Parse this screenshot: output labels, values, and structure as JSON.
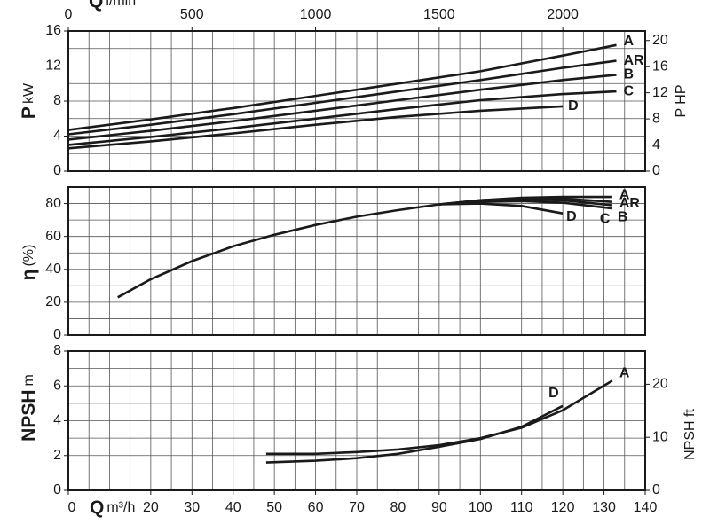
{
  "chart_data": [
    {
      "type": "line",
      "ylabel": "P",
      "yunit": "kW",
      "ylim": [
        0,
        16
      ],
      "yticks": [
        0,
        4,
        8,
        12,
        16
      ],
      "ygrid": [
        0,
        2,
        4,
        6,
        8,
        10,
        12,
        14,
        16
      ],
      "y2label": "P HP",
      "y2lim": [
        0,
        21.46
      ],
      "y2ticks": [
        0,
        4,
        8,
        12,
        16,
        20
      ],
      "xlim": [
        0,
        140
      ],
      "xgrid": [
        0,
        5,
        10,
        15,
        20,
        25,
        30,
        35,
        40,
        45,
        50,
        55,
        60,
        65,
        70,
        75,
        80,
        85,
        90,
        95,
        100,
        105,
        110,
        115,
        120,
        125,
        130,
        135,
        140
      ],
      "x2label": "Q",
      "x2unit": "l/min",
      "x2lim": [
        0,
        2333.33
      ],
      "x2ticks": [
        0,
        500,
        1000,
        1500,
        2000
      ],
      "series": [
        {
          "name": "A",
          "color": "#1a1a1a",
          "x": [
            0,
            20,
            40,
            60,
            80,
            100,
            120,
            133
          ],
          "values": [
            4.7,
            5.9,
            7.2,
            8.6,
            10.0,
            11.4,
            13.2,
            14.4
          ]
        },
        {
          "name": "AR",
          "color": "#1a1a1a",
          "x": [
            0,
            20,
            40,
            60,
            80,
            100,
            120,
            133
          ],
          "values": [
            4.2,
            5.3,
            6.5,
            7.8,
            9.1,
            10.4,
            11.8,
            12.6
          ]
        },
        {
          "name": "B",
          "color": "#1a1a1a",
          "x": [
            0,
            20,
            40,
            60,
            80,
            100,
            120,
            133
          ],
          "values": [
            3.6,
            4.6,
            5.7,
            6.9,
            8.1,
            9.3,
            10.4,
            11.0
          ]
        },
        {
          "name": "C",
          "color": "#1a1a1a",
          "x": [
            0,
            20,
            40,
            60,
            80,
            100,
            120,
            133
          ],
          "values": [
            3.0,
            3.9,
            4.9,
            6.0,
            7.1,
            8.1,
            8.8,
            9.1
          ]
        },
        {
          "name": "D",
          "color": "#1a1a1a",
          "x": [
            0,
            20,
            40,
            60,
            80,
            100,
            120
          ],
          "values": [
            2.6,
            3.4,
            4.3,
            5.3,
            6.2,
            6.9,
            7.4
          ]
        }
      ]
    },
    {
      "type": "line",
      "ylabel": "η",
      "yunit": "(%)",
      "ylim": [
        0,
        90
      ],
      "yticks": [
        0,
        20,
        40,
        60,
        80
      ],
      "ygrid": [
        0,
        10,
        20,
        30,
        40,
        50,
        60,
        70,
        80,
        90
      ],
      "xlim": [
        0,
        140
      ],
      "xgrid": [
        0,
        5,
        10,
        15,
        20,
        25,
        30,
        35,
        40,
        45,
        50,
        55,
        60,
        65,
        70,
        75,
        80,
        85,
        90,
        95,
        100,
        105,
        110,
        115,
        120,
        125,
        130,
        135,
        140
      ],
      "series": [
        {
          "name": "A",
          "color": "#1a1a1a",
          "x": [
            12,
            20,
            30,
            40,
            50,
            60,
            70,
            80,
            90,
            100,
            110,
            120,
            132
          ],
          "values": [
            23,
            34,
            45,
            54,
            61,
            67,
            72,
            76,
            79.5,
            82,
            83.5,
            84,
            84
          ]
        },
        {
          "name": "AR",
          "color": "#1a1a1a",
          "x": [
            90,
            100,
            110,
            120,
            132
          ],
          "values": [
            79.5,
            82,
            83,
            83,
            81
          ]
        },
        {
          "name": "B",
          "color": "#1a1a1a",
          "x": [
            90,
            100,
            110,
            120,
            132
          ],
          "values": [
            79.5,
            81.5,
            82.5,
            82,
            79
          ]
        },
        {
          "name": "C",
          "color": "#1a1a1a",
          "x": [
            90,
            100,
            110,
            120,
            132
          ],
          "values": [
            79.5,
            81,
            81.5,
            80.5,
            77
          ]
        },
        {
          "name": "D",
          "color": "#1a1a1a",
          "x": [
            90,
            100,
            110,
            120
          ],
          "values": [
            79.5,
            80,
            78.5,
            74
          ]
        }
      ]
    },
    {
      "type": "line",
      "ylabel": "NPSH",
      "yunit": "m",
      "ylim": [
        0,
        8
      ],
      "yticks": [
        0,
        2,
        4,
        6,
        8
      ],
      "ygrid": [
        0,
        1,
        2,
        3,
        4,
        5,
        6,
        7,
        8
      ],
      "y2label": "NPSH ft",
      "y2lim": [
        0,
        26.25
      ],
      "y2ticks": [
        0,
        10,
        20
      ],
      "xlabel": "Q",
      "xunit": "m³/h",
      "xlim": [
        0,
        140
      ],
      "xticks": [
        0,
        20,
        30,
        40,
        50,
        60,
        70,
        80,
        90,
        100,
        110,
        120,
        130,
        140
      ],
      "xgrid": [
        0,
        5,
        10,
        15,
        20,
        25,
        30,
        35,
        40,
        45,
        50,
        55,
        60,
        65,
        70,
        75,
        80,
        85,
        90,
        95,
        100,
        105,
        110,
        115,
        120,
        125,
        130,
        135,
        140
      ],
      "series": [
        {
          "name": "A",
          "color": "#1a1a1a",
          "x": [
            48,
            60,
            70,
            80,
            90,
            100,
            110,
            120,
            132
          ],
          "values": [
            2.1,
            2.1,
            2.2,
            2.35,
            2.6,
            3.0,
            3.6,
            4.6,
            6.3
          ]
        },
        {
          "name": "D",
          "color": "#1a1a1a",
          "x": [
            48,
            60,
            70,
            80,
            90,
            100,
            110,
            120
          ],
          "values": [
            1.6,
            1.7,
            1.85,
            2.1,
            2.5,
            2.95,
            3.65,
            4.85
          ]
        }
      ]
    }
  ]
}
